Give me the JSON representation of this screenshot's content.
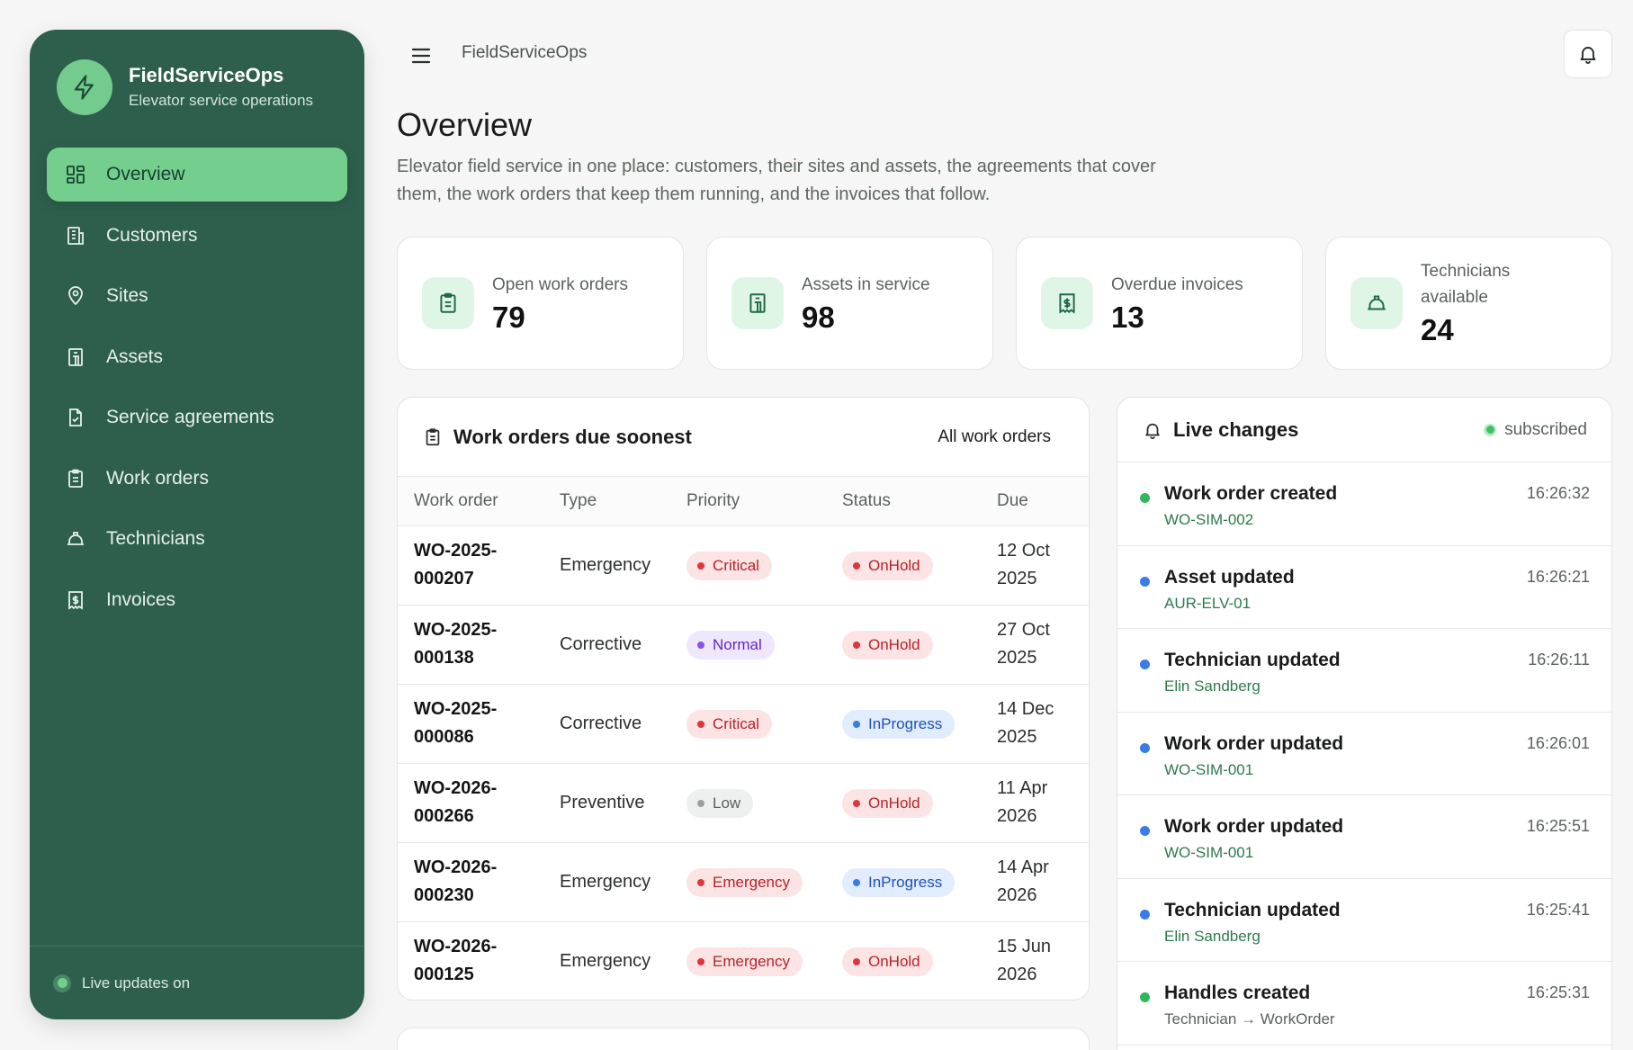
{
  "app": {
    "name": "FieldServiceOps",
    "subtitle": "Elevator service operations"
  },
  "sidebar": {
    "items": [
      {
        "label": "Overview",
        "icon": "dashboard-icon",
        "active": true
      },
      {
        "label": "Customers",
        "icon": "building-icon"
      },
      {
        "label": "Sites",
        "icon": "map-pin-icon"
      },
      {
        "label": "Assets",
        "icon": "elevator-icon"
      },
      {
        "label": "Service agreements",
        "icon": "file-check-icon"
      },
      {
        "label": "Work orders",
        "icon": "clipboard-icon"
      },
      {
        "label": "Technicians",
        "icon": "hard-hat-icon"
      },
      {
        "label": "Invoices",
        "icon": "receipt-icon"
      }
    ],
    "footer": "Live updates on"
  },
  "topbar": {
    "breadcrumb": "FieldServiceOps"
  },
  "page": {
    "title": "Overview",
    "description": "Elevator field service in one place: customers, their sites and assets, the agreements that cover them, the work orders that keep them running, and the invoices that follow."
  },
  "stats": [
    {
      "label": "Open work orders",
      "value": "79",
      "icon": "clipboard-icon"
    },
    {
      "label": "Assets in service",
      "value": "98",
      "icon": "elevator-icon"
    },
    {
      "label": "Overdue invoices",
      "value": "13",
      "icon": "receipt-icon"
    },
    {
      "label": "Technicians available",
      "value": "24",
      "icon": "hard-hat-icon"
    }
  ],
  "work_orders": {
    "title": "Work orders due soonest",
    "link": "All work orders",
    "columns": [
      "Work order",
      "Type",
      "Priority",
      "Status",
      "Due"
    ],
    "rows": [
      {
        "id": "WO-2025-000207",
        "type": "Emergency",
        "priority": "Critical",
        "status": "OnHold",
        "due": "12 Oct 2025"
      },
      {
        "id": "WO-2025-000138",
        "type": "Corrective",
        "priority": "Normal",
        "status": "OnHold",
        "due": "27 Oct 2025"
      },
      {
        "id": "WO-2025-000086",
        "type": "Corrective",
        "priority": "Critical",
        "status": "InProgress",
        "due": "14 Dec 2025"
      },
      {
        "id": "WO-2026-000266",
        "type": "Preventive",
        "priority": "Low",
        "status": "OnHold",
        "due": "11 Apr 2026"
      },
      {
        "id": "WO-2026-000230",
        "type": "Emergency",
        "priority": "Emergency",
        "status": "InProgress",
        "due": "14 Apr 2026"
      },
      {
        "id": "WO-2026-000125",
        "type": "Emergency",
        "priority": "Emergency",
        "status": "OnHold",
        "due": "15 Jun 2026"
      }
    ]
  },
  "live": {
    "title": "Live changes",
    "status": "subscribed",
    "events": [
      {
        "title": "Work order created",
        "detail": "WO-SIM-002",
        "time": "16:26:32",
        "color": "#2fb75a"
      },
      {
        "title": "Asset updated",
        "detail": "AUR-ELV-01",
        "time": "16:26:21",
        "color": "#3b7be8"
      },
      {
        "title": "Technician updated",
        "detail": "Elin Sandberg",
        "time": "16:26:11",
        "color": "#3b7be8"
      },
      {
        "title": "Work order updated",
        "detail": "WO-SIM-001",
        "time": "16:26:01",
        "color": "#3b7be8"
      },
      {
        "title": "Work order updated",
        "detail": "WO-SIM-001",
        "time": "16:25:51",
        "color": "#3b7be8"
      },
      {
        "title": "Technician updated",
        "detail": "Elin Sandberg",
        "time": "16:25:41",
        "color": "#3b7be8"
      },
      {
        "title": "Handles created",
        "detail": "Technician → WorkOrder",
        "time": "16:25:31",
        "color": "#2fb75a",
        "muted": true
      }
    ]
  },
  "colors": {
    "sidebar": "#2e5f4d",
    "accent": "#74cf8e",
    "critical": "#e0353c",
    "inprogress": "#3a7be6"
  }
}
